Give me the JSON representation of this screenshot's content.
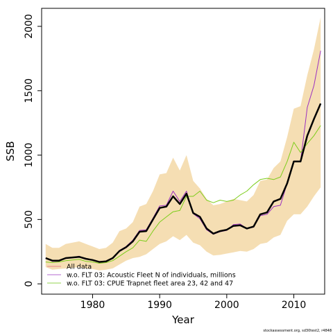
{
  "chart_data": {
    "type": "line",
    "xlabel": "Year",
    "ylabel": "SSB",
    "xlim": [
      1972.4,
      2014.6
    ],
    "ylim": [
      -80,
      2140
    ],
    "x_ticks": [
      1980,
      1990,
      2000,
      2010
    ],
    "y_ticks": [
      0,
      500,
      1000,
      1500,
      2000
    ],
    "grid": false,
    "legend_position": "bottom-left",
    "x": [
      1973,
      1974,
      1975,
      1976,
      1977,
      1978,
      1979,
      1980,
      1981,
      1982,
      1983,
      1984,
      1985,
      1986,
      1987,
      1988,
      1989,
      1990,
      1991,
      1992,
      1993,
      1994,
      1995,
      1996,
      1997,
      1998,
      1999,
      2000,
      2001,
      2002,
      2003,
      2004,
      2005,
      2006,
      2007,
      2008,
      2009,
      2010,
      2011,
      2012,
      2013,
      2014
    ],
    "band": {
      "name": "All data confidence interval",
      "color": "#f5deb3",
      "lower": [
        130,
        110,
        115,
        120,
        125,
        130,
        120,
        115,
        105,
        110,
        120,
        150,
        180,
        200,
        210,
        230,
        270,
        310,
        330,
        370,
        340,
        380,
        320,
        300,
        250,
        220,
        225,
        235,
        245,
        255,
        250,
        270,
        310,
        320,
        360,
        380,
        490,
        540,
        540,
        600,
        680,
        750
      ],
      "upper": [
        310,
        280,
        280,
        310,
        320,
        330,
        310,
        290,
        270,
        280,
        320,
        410,
        430,
        480,
        600,
        620,
        720,
        850,
        860,
        980,
        880,
        1000,
        800,
        740,
        660,
        610,
        620,
        640,
        660,
        650,
        640,
        690,
        800,
        810,
        900,
        950,
        1140,
        1360,
        1380,
        1620,
        1820,
        2070
      ]
    },
    "series": [
      {
        "name": "All data",
        "color": "#000000",
        "legend_color": "#e8808a",
        "width": 2.5,
        "values": [
          200,
          180,
          180,
          200,
          205,
          210,
          195,
          185,
          170,
          175,
          200,
          255,
          285,
          330,
          405,
          410,
          500,
          590,
          600,
          680,
          620,
          700,
          550,
          520,
          430,
          390,
          410,
          420,
          450,
          455,
          430,
          445,
          540,
          555,
          640,
          660,
          780,
          950,
          950,
          1150,
          1280,
          1400
        ]
      },
      {
        "name": "w.o. FLT 03: Acoustic Fleet   N of individuals, millions",
        "color": "#9b30c0",
        "legend_color": "#b46ad0",
        "width": 1,
        "values": [
          200,
          175,
          175,
          200,
          205,
          215,
          195,
          185,
          170,
          175,
          200,
          260,
          290,
          340,
          415,
          420,
          510,
          605,
          610,
          720,
          640,
          720,
          545,
          505,
          420,
          385,
          405,
          415,
          460,
          465,
          430,
          440,
          530,
          540,
          600,
          610,
          780,
          950,
          950,
          1370,
          1540,
          1810
        ]
      },
      {
        "name": "w.o. FLT 03: CPUE Trapnet fleet area 23, 42 and 47",
        "color": "#7ccd1a",
        "legend_color": "#93d34f",
        "width": 1,
        "values": [
          170,
          165,
          170,
          180,
          185,
          190,
          175,
          170,
          160,
          165,
          180,
          215,
          250,
          280,
          340,
          330,
          410,
          480,
          520,
          560,
          570,
          680,
          680,
          720,
          650,
          630,
          650,
          640,
          650,
          690,
          720,
          770,
          810,
          820,
          810,
          830,
          950,
          1100,
          1020,
          1090,
          1150,
          1230
        ]
      }
    ],
    "credit": "stockassessment.org, sd30test2, r4848"
  }
}
